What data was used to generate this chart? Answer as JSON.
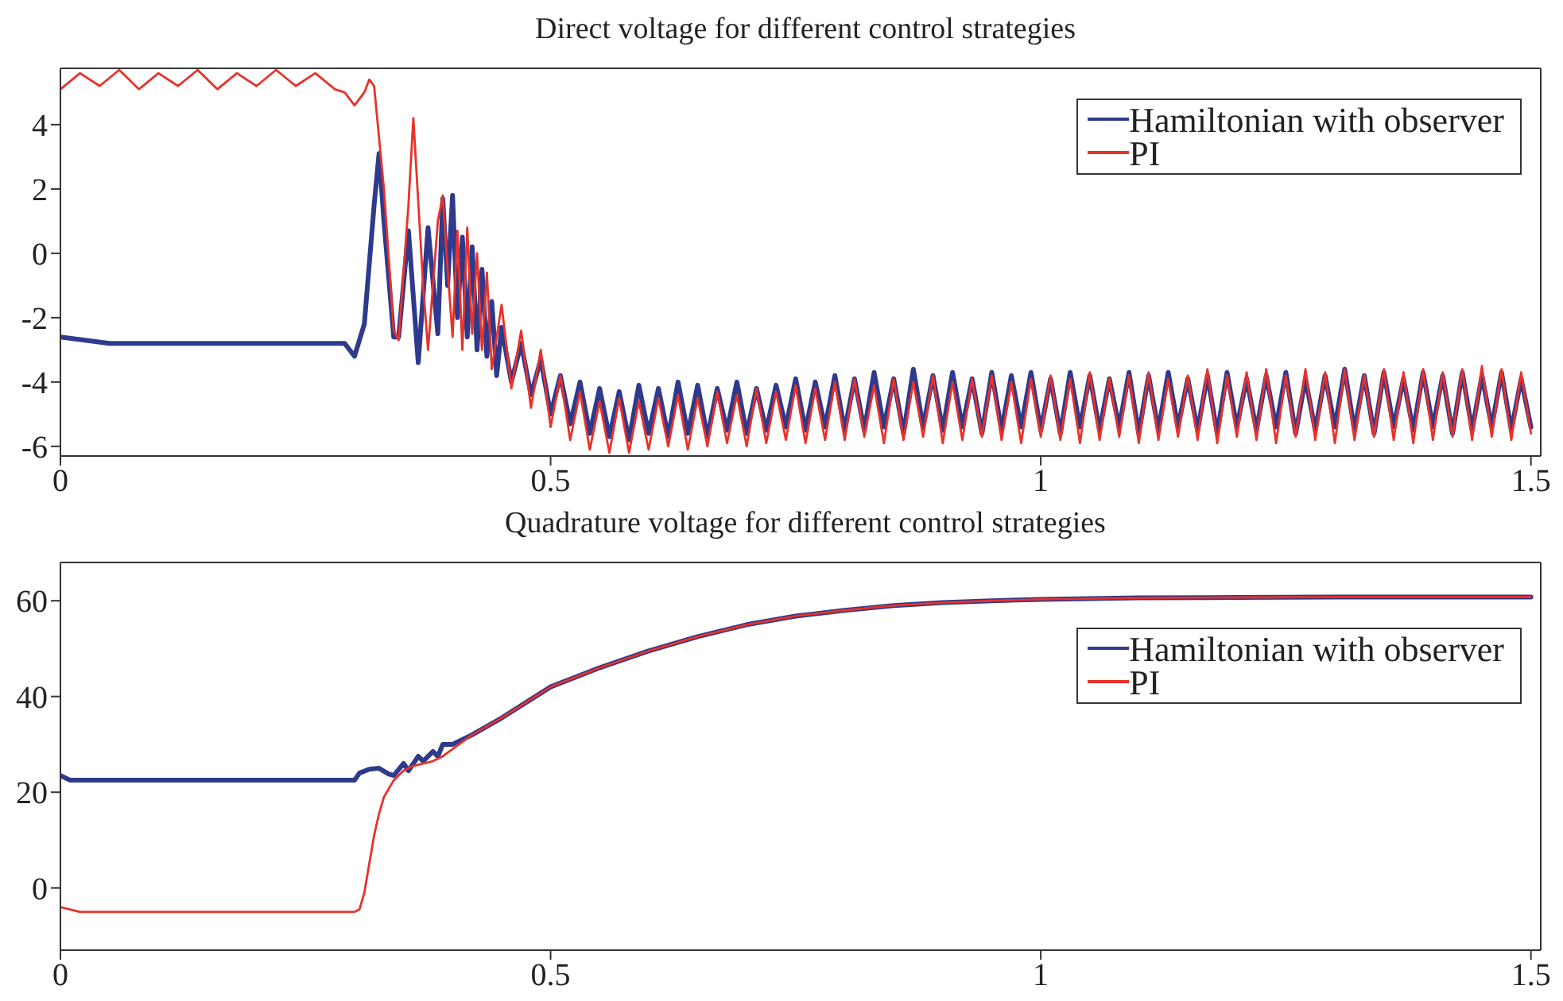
{
  "chart_data": [
    {
      "type": "line",
      "title": "Direct voltage for different control strategies",
      "xlim": [
        0,
        1.51
      ],
      "ylim": [
        -6.3,
        5.75
      ],
      "xticks": [
        0,
        0.5,
        1,
        1.5
      ],
      "yticks": [
        -6,
        -4,
        -2,
        0,
        2,
        4
      ],
      "legend": "top right",
      "series": [
        {
          "name": "Hamiltonian with observer",
          "color": "#2e3a8c",
          "x": [
            0,
            0.05,
            0.1,
            0.15,
            0.2,
            0.25,
            0.29,
            0.3,
            0.31,
            0.32,
            0.325,
            0.33,
            0.34,
            0.345,
            0.355,
            0.365,
            0.375,
            0.385,
            0.39,
            0.395,
            0.4,
            0.405,
            0.41,
            0.415,
            0.42,
            0.425,
            0.43,
            0.435,
            0.44,
            0.445,
            0.45,
            0.46,
            0.47,
            0.48,
            0.49,
            0.5,
            0.51,
            0.52,
            0.53,
            0.54,
            0.55,
            0.56,
            0.57,
            0.58,
            0.59,
            0.6,
            0.61,
            0.62,
            0.63,
            0.64,
            0.65,
            0.66,
            0.67,
            0.68,
            0.69,
            0.7,
            0.71,
            0.72,
            0.73,
            0.74,
            0.75,
            0.76,
            0.77,
            0.78,
            0.79,
            0.8,
            0.81,
            0.82,
            0.83,
            0.84,
            0.85,
            0.86,
            0.87,
            0.88,
            0.89,
            0.9,
            0.91,
            0.92,
            0.93,
            0.94,
            0.95,
            0.96,
            0.97,
            0.98,
            0.99,
            1,
            1.01,
            1.02,
            1.03,
            1.04,
            1.05,
            1.06,
            1.07,
            1.08,
            1.09,
            1.1,
            1.11,
            1.12,
            1.13,
            1.14,
            1.15,
            1.16,
            1.17,
            1.18,
            1.19,
            1.2,
            1.21,
            1.22,
            1.23,
            1.24,
            1.25,
            1.26,
            1.27,
            1.28,
            1.29,
            1.3,
            1.31,
            1.32,
            1.33,
            1.34,
            1.35,
            1.36,
            1.37,
            1.38,
            1.39,
            1.4,
            1.41,
            1.42,
            1.43,
            1.44,
            1.45,
            1.46,
            1.47,
            1.48,
            1.49,
            1.5
          ],
          "values": [
            -2.6,
            -2.8,
            -2.8,
            -2.8,
            -2.8,
            -2.8,
            -2.8,
            -3.2,
            -2.2,
            1.5,
            3.1,
            1.0,
            -2.6,
            -2.6,
            0.7,
            -3.4,
            0.8,
            -2.5,
            1.7,
            -1.0,
            1.8,
            -2.0,
            0.5,
            -2.6,
            0.2,
            -3.0,
            -0.5,
            -3.2,
            -1.5,
            -3.8,
            -2.3,
            -4.0,
            -2.8,
            -4.4,
            -3.3,
            -5.0,
            -3.8,
            -5.3,
            -4.0,
            -5.6,
            -4.2,
            -5.7,
            -4.3,
            -5.8,
            -4.1,
            -5.6,
            -4.2,
            -5.7,
            -4.0,
            -5.6,
            -4.1,
            -5.7,
            -4.2,
            -5.5,
            -4.0,
            -5.6,
            -4.2,
            -5.5,
            -4.1,
            -5.4,
            -3.9,
            -5.5,
            -4.0,
            -5.4,
            -3.8,
            -5.5,
            -3.9,
            -5.5,
            -3.7,
            -5.4,
            -3.9,
            -5.6,
            -3.6,
            -5.4,
            -3.8,
            -5.5,
            -3.7,
            -5.4,
            -3.9,
            -5.6,
            -3.7,
            -5.5,
            -3.8,
            -5.4,
            -3.7,
            -5.5,
            -3.9,
            -5.6,
            -3.7,
            -5.4,
            -3.8,
            -5.5,
            -3.9,
            -5.4,
            -3.7,
            -5.6,
            -3.8,
            -5.5,
            -3.7,
            -5.4,
            -3.9,
            -5.5,
            -3.8,
            -5.6,
            -3.7,
            -5.4,
            -3.9,
            -5.5,
            -3.8,
            -5.4,
            -3.7,
            -5.6,
            -3.9,
            -5.5,
            -3.8,
            -5.4,
            -3.6,
            -5.5,
            -3.8,
            -5.6,
            -3.7,
            -5.4,
            -3.9,
            -5.5,
            -3.7,
            -5.4,
            -3.8,
            -5.6,
            -3.7,
            -5.5,
            -3.8,
            -5.4,
            -3.7,
            -5.5,
            -3.9,
            -5.4
          ]
        },
        {
          "name": "PI",
          "color": "#e8322a",
          "x": [
            0,
            0.02,
            0.04,
            0.06,
            0.08,
            0.1,
            0.12,
            0.14,
            0.16,
            0.18,
            0.2,
            0.22,
            0.24,
            0.26,
            0.28,
            0.29,
            0.3,
            0.31,
            0.315,
            0.32,
            0.33,
            0.34,
            0.345,
            0.355,
            0.36,
            0.37,
            0.375,
            0.385,
            0.39,
            0.395,
            0.4,
            0.405,
            0.41,
            0.415,
            0.42,
            0.425,
            0.43,
            0.435,
            0.44,
            0.45,
            0.46,
            0.47,
            0.48,
            0.49,
            0.5,
            0.51,
            0.52,
            0.53,
            0.54,
            0.55,
            0.56,
            0.57,
            0.58,
            0.59,
            0.6,
            0.61,
            0.62,
            0.63,
            0.64,
            0.65,
            0.66,
            0.67,
            0.68,
            0.69,
            0.7,
            0.71,
            0.72,
            0.73,
            0.74,
            0.75,
            0.76,
            0.77,
            0.78,
            0.79,
            0.8,
            0.81,
            0.82,
            0.83,
            0.84,
            0.85,
            0.86,
            0.87,
            0.88,
            0.89,
            0.9,
            0.91,
            0.92,
            0.93,
            0.94,
            0.95,
            0.96,
            0.97,
            0.98,
            0.99,
            1,
            1.01,
            1.02,
            1.03,
            1.04,
            1.05,
            1.06,
            1.07,
            1.08,
            1.09,
            1.1,
            1.11,
            1.12,
            1.13,
            1.14,
            1.15,
            1.16,
            1.17,
            1.18,
            1.19,
            1.2,
            1.21,
            1.22,
            1.23,
            1.24,
            1.25,
            1.26,
            1.27,
            1.28,
            1.29,
            1.3,
            1.31,
            1.32,
            1.33,
            1.34,
            1.35,
            1.36,
            1.37,
            1.38,
            1.39,
            1.4,
            1.41,
            1.42,
            1.43,
            1.44,
            1.45,
            1.46,
            1.47,
            1.48,
            1.49,
            1.5
          ],
          "values": [
            5.1,
            5.6,
            5.2,
            5.7,
            5.1,
            5.6,
            5.2,
            5.7,
            5.1,
            5.6,
            5.2,
            5.7,
            5.2,
            5.6,
            5.1,
            5.0,
            4.6,
            5.0,
            5.4,
            5.2,
            2.0,
            -2.4,
            -2.7,
            1.5,
            4.2,
            -1.0,
            -3.0,
            1.0,
            1.8,
            -0.5,
            -2.6,
            0.7,
            -3.0,
            0.8,
            -2.5,
            0.0,
            -3.0,
            -0.6,
            -3.6,
            -1.6,
            -4.2,
            -2.4,
            -4.8,
            -3.0,
            -5.4,
            -3.8,
            -5.8,
            -4.3,
            -6.1,
            -4.6,
            -6.2,
            -4.5,
            -6.2,
            -4.6,
            -6.1,
            -4.5,
            -6.0,
            -4.4,
            -6.1,
            -4.5,
            -6.0,
            -4.3,
            -5.9,
            -4.4,
            -6.0,
            -4.2,
            -5.9,
            -4.3,
            -5.8,
            -4.1,
            -5.9,
            -4.2,
            -5.8,
            -4.0,
            -5.8,
            -3.9,
            -5.7,
            -4.1,
            -5.9,
            -3.9,
            -5.8,
            -4.0,
            -5.7,
            -3.8,
            -5.9,
            -4.0,
            -5.8,
            -3.9,
            -5.7,
            -3.8,
            -5.8,
            -4.0,
            -5.9,
            -3.9,
            -5.7,
            -3.8,
            -5.8,
            -3.9,
            -5.9,
            -3.7,
            -5.8,
            -3.9,
            -5.7,
            -3.8,
            -5.9,
            -3.7,
            -5.8,
            -3.9,
            -5.7,
            -3.8,
            -5.8,
            -3.6,
            -5.9,
            -3.8,
            -5.7,
            -3.7,
            -5.8,
            -3.6,
            -5.9,
            -3.8,
            -5.7,
            -3.6,
            -5.8,
            -3.7,
            -5.9,
            -3.6,
            -5.8,
            -3.8,
            -5.7,
            -3.6,
            -5.8,
            -3.7,
            -5.9,
            -3.6,
            -5.8,
            -3.7,
            -5.7,
            -3.6,
            -5.8,
            -3.5,
            -5.7,
            -3.6,
            -5.8,
            -3.7,
            -5.6
          ]
        }
      ]
    },
    {
      "type": "line",
      "title": "Quadrature voltage for different control strategies",
      "xlim": [
        0,
        1.51
      ],
      "ylim": [
        -13,
        68
      ],
      "xticks": [
        0,
        0.5,
        1,
        1.5
      ],
      "yticks": [
        0,
        20,
        40,
        60
      ],
      "legend": "right",
      "series": [
        {
          "name": "Hamiltonian with observer",
          "color": "#2e3a8c",
          "x": [
            0,
            0.01,
            0.05,
            0.1,
            0.15,
            0.2,
            0.25,
            0.3,
            0.305,
            0.315,
            0.325,
            0.335,
            0.34,
            0.35,
            0.355,
            0.365,
            0.37,
            0.38,
            0.385,
            0.39,
            0.4,
            0.42,
            0.45,
            0.5,
            0.55,
            0.6,
            0.65,
            0.7,
            0.75,
            0.8,
            0.85,
            0.9,
            0.95,
            1,
            1.1,
            1.2,
            1.3,
            1.4,
            1.5
          ],
          "values": [
            23.5,
            22.5,
            22.5,
            22.5,
            22.5,
            22.5,
            22.5,
            22.5,
            24,
            24.8,
            25,
            23.8,
            23.5,
            26,
            24.5,
            27.5,
            26.5,
            28.5,
            27.5,
            30,
            30,
            32,
            35.5,
            42,
            46,
            49.5,
            52.5,
            55,
            56.8,
            58,
            59,
            59.6,
            60,
            60.3,
            60.6,
            60.7,
            60.8,
            60.8,
            60.8
          ]
        },
        {
          "name": "PI",
          "color": "#e8322a",
          "x": [
            0,
            0.02,
            0.05,
            0.1,
            0.15,
            0.2,
            0.25,
            0.3,
            0.305,
            0.31,
            0.315,
            0.32,
            0.325,
            0.33,
            0.34,
            0.35,
            0.36,
            0.37,
            0.38,
            0.39,
            0.4,
            0.42,
            0.45,
            0.5,
            0.55,
            0.6,
            0.65,
            0.7,
            0.75,
            0.8,
            0.85,
            0.9,
            0.95,
            1,
            1.1,
            1.2,
            1.3,
            1.4,
            1.5
          ],
          "values": [
            -4,
            -5,
            -5,
            -5,
            -5,
            -5,
            -5,
            -5,
            -4.5,
            -1,
            5,
            11,
            15.5,
            19,
            22.5,
            24.5,
            25.5,
            26,
            26.5,
            27.5,
            29,
            32,
            35.5,
            42,
            46,
            49.5,
            52.5,
            55,
            56.8,
            58,
            59,
            59.6,
            60,
            60.3,
            60.6,
            60.7,
            60.8,
            60.8,
            60.8
          ]
        }
      ]
    }
  ]
}
